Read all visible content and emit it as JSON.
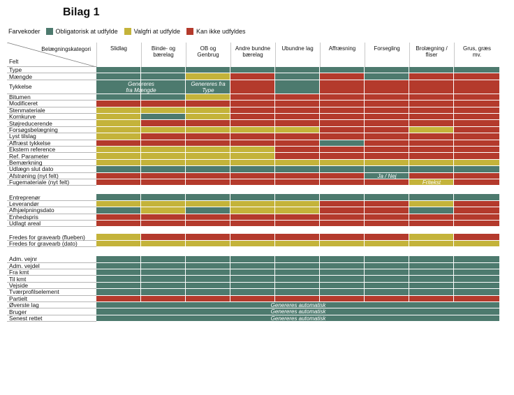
{
  "title": "Bilag 1",
  "legend": {
    "label": "Farvekoder",
    "items": [
      {
        "key": "G",
        "label": "Obligatorisk at udfylde",
        "color": "#4d7a6e"
      },
      {
        "key": "Y",
        "label": "Valgfri at udfylde",
        "color": "#c4b33a"
      },
      {
        "key": "R",
        "label": "Kan ikke udfyldes",
        "color": "#b43a2c"
      }
    ]
  },
  "header": {
    "corner_top": "Belægningskategori",
    "corner_bottom": "Felt",
    "columns": [
      "Slidlag",
      "Binde- og\nbærelag",
      "OB og\nGenbrug",
      "Andre bundne\nbærelag",
      "Ubundne lag",
      "Affræsning",
      "Forsegling",
      "Brolægning /\nfliser",
      "Grus, græs\nmv."
    ]
  },
  "groups": [
    {
      "rows": [
        {
          "label": "Type",
          "cells": "GGGGGGGGG"
        },
        {
          "label": "Mængde",
          "cells": "GGYRGRGRR"
        },
        {
          "label": "Tykkelse",
          "cells": "GGGRGRRRR",
          "tall": true
        },
        {
          "label": "Bitumen",
          "cells": "GGYRRRRRR"
        },
        {
          "label": "Modificeret",
          "cells": "RRRRRRRRR"
        },
        {
          "label": "Stenmateriale",
          "cells": "YYYRRRRRR"
        },
        {
          "label": "Kornkurve",
          "cells": "YGYRRRRRR"
        },
        {
          "label": "Støjreducerende",
          "cells": "YRRRRRRRR"
        },
        {
          "label": "Forsøgsbelægning",
          "cells": "YYYYYRRYR"
        },
        {
          "label": "Lyst tilslag",
          "cells": "YRRRRRRRR"
        },
        {
          "label": "Affræst tykkelse",
          "cells": "RRRRRGRRR"
        },
        {
          "label": "Ekstern reference",
          "cells": "YYYYRRRRR"
        },
        {
          "label": "Ref. Parameter",
          "cells": "YYYYRRRRR"
        },
        {
          "label": "Bemærkning",
          "cells": "YYYYYYYYY"
        },
        {
          "label": "Udlægn slut dato",
          "cells": "GGGGGGGGG"
        },
        {
          "label": "Afstrøning (nyt felt)",
          "cells": "RRRRRRGRR"
        },
        {
          "label": "Fugemateriale (nyt felt)",
          "cells": "RRRRRRRYR"
        }
      ]
    },
    {
      "rows": [
        {
          "label": "Entreprenør",
          "cells": "GGGGGGGGG"
        },
        {
          "label": "Leverandør",
          "cells": "YYYYYRRYR"
        },
        {
          "label": "Afhjælpningsdato",
          "cells": "GYGYYRRGR"
        },
        {
          "label": "Enhedspris",
          "cells": "RRRRRRRRR"
        },
        {
          "label": "Udlagt areal",
          "cells": "RRRRRRRRR"
        }
      ]
    },
    {
      "rows": [
        {
          "label": "Fredes for gravearb (flueben)",
          "cells": "YRRRRRRYR"
        },
        {
          "label": "Fredes for gravearb (dato)",
          "cells": "YYYYYYYYY"
        }
      ]
    },
    {
      "rows": [
        {
          "label": "Adm. vejnr",
          "cells": "GGGGGGGGG"
        },
        {
          "label": "Adm. vejdel",
          "cells": "GGGGGGGGG"
        },
        {
          "label": "Fra kmt",
          "cells": "GGGGGGGGG"
        },
        {
          "label": "Til kmt",
          "cells": "GGGGGGGGG"
        },
        {
          "label": "Vejside",
          "cells": "GGGGGGGGG"
        },
        {
          "label": "Tværprofilselement",
          "cells": "GGGGGGGGG"
        },
        {
          "label": "Partielt",
          "cells": "RRRRRRRRR"
        },
        {
          "label": "Øverste lag",
          "cells": "GGGGGGGGG",
          "merged": true
        },
        {
          "label": "Bruger",
          "cells": "GGGGGGGGG",
          "merged": true
        },
        {
          "label": "Senest rettet",
          "cells": "GGGGGGGGG",
          "merged": true
        }
      ]
    }
  ],
  "notes": [
    {
      "text": "Genereres\nfra Mængde",
      "row": "Tykkelse",
      "col": 0,
      "span": 2
    },
    {
      "text": "Genereres fra\nType",
      "row": "Tykkelse",
      "col": 2,
      "span": 1
    },
    {
      "text": "Ja / Nej",
      "row": "Afstrøning (nyt felt)",
      "col": 6,
      "span": 1
    },
    {
      "text": "Fritekst",
      "row": "Fugemateriale (nyt felt)",
      "col": 7,
      "span": 1
    },
    {
      "text": "Genereres automatisk",
      "row": "Øverste lag",
      "col": 0,
      "span": 9
    },
    {
      "text": "Genereres automatisk",
      "row": "Bruger",
      "col": 0,
      "span": 9
    },
    {
      "text": "Genereres automatisk",
      "row": "Senest rettet",
      "col": 0,
      "span": 9
    }
  ]
}
